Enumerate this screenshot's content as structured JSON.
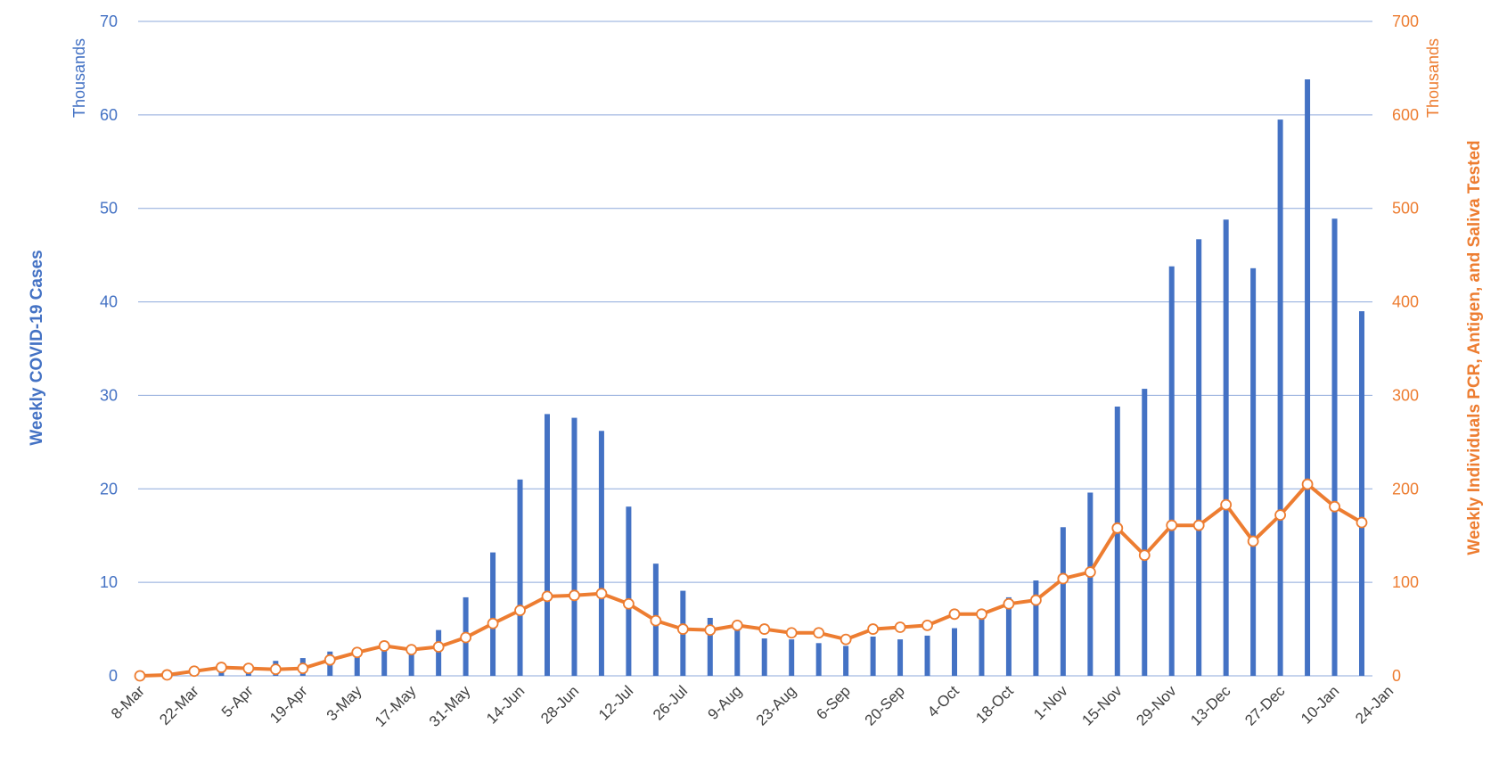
{
  "chart_data": {
    "type": "bar",
    "title": "",
    "colors": {
      "cases": "#4472C4",
      "tested": "#ED7D31",
      "grid": "#8EA9DB"
    },
    "y_left": {
      "label": "Weekly COVID-19 Cases",
      "unit": "Thousands",
      "range": [
        0,
        70
      ],
      "ticks": [
        0,
        10,
        20,
        30,
        40,
        50,
        60,
        70
      ]
    },
    "y_right": {
      "label": "Weekly Individuals PCR, Antigen, and Saliva Tested",
      "unit": "Thousands",
      "range": [
        0,
        700
      ],
      "ticks": [
        0,
        100,
        200,
        300,
        400,
        500,
        600,
        700
      ]
    },
    "x_tick_labels": [
      "8-Mar",
      "22-Mar",
      "5-Apr",
      "19-Apr",
      "3-May",
      "17-May",
      "31-May",
      "14-Jun",
      "28-Jun",
      "12-Jul",
      "26-Jul",
      "9-Aug",
      "23-Aug",
      "6-Sep",
      "20-Sep",
      "4-Oct",
      "18-Oct",
      "1-Nov",
      "15-Nov",
      "29-Nov",
      "13-Dec",
      "27-Dec",
      "10-Jan",
      "24-Jan"
    ],
    "grid": true,
    "legend": "none",
    "series": [
      {
        "name": "Weekly COVID-19 Cases",
        "type": "bar",
        "axis": "left",
        "values": [
          0.02,
          0.1,
          0.6,
          0.9,
          1.3,
          1.6,
          1.9,
          2.6,
          3.0,
          3.3,
          3.0,
          4.9,
          8.4,
          13.2,
          21.0,
          28.0,
          27.6,
          26.2,
          18.1,
          12.0,
          9.1,
          6.2,
          5.4,
          4.0,
          3.9,
          3.5,
          3.2,
          4.2,
          3.9,
          4.3,
          5.1,
          7.0,
          8.4,
          10.2,
          15.9,
          19.6,
          28.8,
          30.7,
          43.8,
          46.7,
          48.8,
          43.6,
          59.5,
          63.8,
          48.9,
          39.0
        ]
      },
      {
        "name": "Weekly Individuals PCR, Antigen, and Saliva Tested",
        "type": "line",
        "axis": "right",
        "values": [
          0,
          1,
          5,
          9,
          8,
          7,
          8,
          17,
          25,
          32,
          28,
          31,
          41,
          56,
          70,
          85,
          86,
          88,
          77,
          59,
          50,
          49,
          54,
          50,
          46,
          46,
          39,
          50,
          52,
          54,
          66,
          66,
          77,
          81,
          104,
          111,
          158,
          129,
          161,
          161,
          183,
          144,
          172,
          205,
          181,
          164
        ]
      }
    ]
  }
}
